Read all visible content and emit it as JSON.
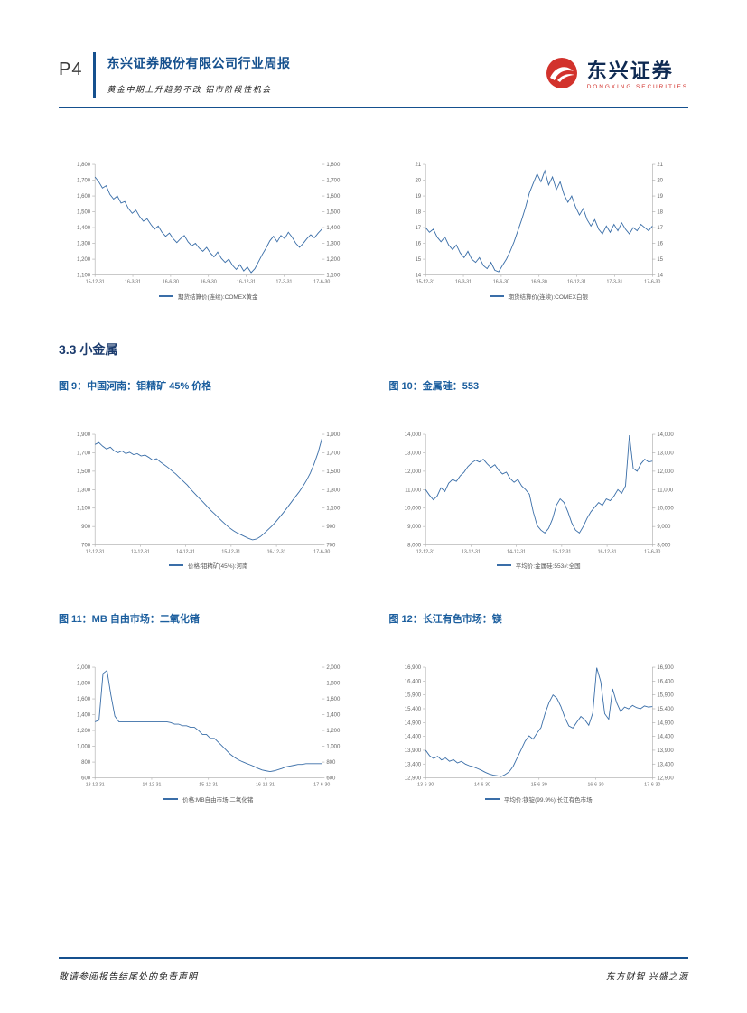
{
  "header": {
    "page_number": "P4",
    "title": "东兴证券股份有限公司行业周报",
    "subtitle": "黄金中期上升趋势不改 铝市阶段性机会",
    "brand_name": "东兴证券",
    "brand_sub": "DONGXING SECURITIES"
  },
  "section_heading": "3.3 小金属",
  "footer": {
    "left": "敬请参阅报告结尾处的免责声明",
    "right": "东方财智 兴盛之源"
  },
  "colors": {
    "accent_blue": "#15508e",
    "caption_blue": "#1b5e9e",
    "chart_line": "#3a6ea8",
    "logo_red": "#d2322c",
    "axis_gray": "#a9a9a9",
    "tick_text_gray": "#666666"
  },
  "chart_data": [
    {
      "type": "line",
      "legend": "期货结算价(连续):COMEX黄金",
      "ylim": [
        1100,
        1800
      ],
      "yticks": [
        1100,
        1200,
        1300,
        1400,
        1500,
        1600,
        1700,
        1800
      ],
      "x_ticks": [
        "15-12-31",
        "16-3-31",
        "16-6-30",
        "16-9-30",
        "16-12-31",
        "17-3-31",
        "17-6-30"
      ],
      "values": [
        1720,
        1690,
        1650,
        1665,
        1610,
        1580,
        1600,
        1555,
        1565,
        1520,
        1490,
        1510,
        1470,
        1440,
        1455,
        1420,
        1390,
        1410,
        1370,
        1345,
        1365,
        1330,
        1305,
        1330,
        1350,
        1310,
        1285,
        1300,
        1270,
        1250,
        1275,
        1240,
        1215,
        1245,
        1205,
        1180,
        1200,
        1160,
        1135,
        1165,
        1125,
        1150,
        1115,
        1140,
        1185,
        1230,
        1270,
        1315,
        1345,
        1310,
        1350,
        1330,
        1370,
        1340,
        1300,
        1275,
        1300,
        1330,
        1355,
        1335,
        1365,
        1390
      ]
    },
    {
      "type": "line",
      "legend": "期货结算价(连续):COMEX白银",
      "ylim": [
        14,
        21
      ],
      "yticks": [
        14,
        15,
        16,
        17,
        18,
        19,
        20,
        21
      ],
      "x_ticks": [
        "15-12-31",
        "16-3-31",
        "16-6-30",
        "16-9-30",
        "16-12-31",
        "17-3-31",
        "17-6-30"
      ],
      "values": [
        17.0,
        16.7,
        16.9,
        16.4,
        16.1,
        16.4,
        15.9,
        15.6,
        15.9,
        15.4,
        15.1,
        15.5,
        15.0,
        14.8,
        15.1,
        14.6,
        14.4,
        14.8,
        14.3,
        14.2,
        14.6,
        15.0,
        15.5,
        16.1,
        16.8,
        17.5,
        18.3,
        19.2,
        19.8,
        20.4,
        19.9,
        20.6,
        19.7,
        20.2,
        19.4,
        19.9,
        19.1,
        18.6,
        19.0,
        18.3,
        17.8,
        18.2,
        17.5,
        17.1,
        17.5,
        16.9,
        16.6,
        17.1,
        16.7,
        17.2,
        16.8,
        17.3,
        16.9,
        16.6,
        17.0,
        16.8,
        17.2,
        17.0,
        16.8,
        17.1
      ]
    },
    {
      "type": "line",
      "caption": "图 9：中国河南：钼精矿 45% 价格",
      "legend": "价格:钼精矿(45%):河南",
      "ylim": [
        700,
        1900
      ],
      "yticks": [
        700,
        900,
        1100,
        1300,
        1500,
        1700,
        1900
      ],
      "x_ticks": [
        "12-12-31",
        "13-12-31",
        "14-12-31",
        "15-12-31",
        "16-12-31",
        "17-6-30"
      ],
      "values": [
        1790,
        1810,
        1770,
        1740,
        1760,
        1720,
        1700,
        1720,
        1690,
        1705,
        1680,
        1690,
        1665,
        1675,
        1650,
        1620,
        1635,
        1600,
        1570,
        1540,
        1505,
        1470,
        1430,
        1390,
        1350,
        1300,
        1255,
        1210,
        1170,
        1125,
        1080,
        1040,
        1000,
        960,
        920,
        885,
        855,
        830,
        810,
        790,
        770,
        755,
        765,
        790,
        825,
        865,
        905,
        950,
        1000,
        1050,
        1105,
        1160,
        1215,
        1270,
        1330,
        1400,
        1480,
        1580,
        1700,
        1850
      ]
    },
    {
      "type": "line",
      "caption": "图 10：金属硅：553",
      "legend": "平均价:金属硅:553#:全国",
      "ylim": [
        8000,
        14000
      ],
      "yticks": [
        8000,
        9000,
        10000,
        11000,
        12000,
        13000,
        14000
      ],
      "x_ticks": [
        "12-12-31",
        "13-12-31",
        "14-12-31",
        "15-12-31",
        "16-12-31",
        "17-6-30"
      ],
      "values": [
        11000,
        10700,
        10450,
        10650,
        11100,
        10900,
        11350,
        11550,
        11450,
        11750,
        11950,
        12250,
        12450,
        12600,
        12500,
        12650,
        12400,
        12200,
        12350,
        12050,
        11850,
        11950,
        11600,
        11400,
        11550,
        11200,
        11000,
        10750,
        9800,
        9050,
        8800,
        8650,
        8900,
        9400,
        10150,
        10500,
        10300,
        9800,
        9200,
        8800,
        8650,
        9000,
        9450,
        9800,
        10050,
        10300,
        10150,
        10500,
        10400,
        10650,
        11000,
        10800,
        11200,
        13950,
        12150,
        12000,
        12400,
        12650,
        12500,
        12550
      ]
    },
    {
      "type": "line",
      "caption": "图 11：MB 自由市场：二氧化锗",
      "legend": "价格:MB自由市场:二氧化锗",
      "ylim": [
        600,
        2000
      ],
      "yticks": [
        600,
        800,
        1000,
        1200,
        1400,
        1600,
        1800,
        2000
      ],
      "x_ticks": [
        "13-12-31",
        "14-12-31",
        "15-12-31",
        "16-12-31",
        "17-6-30"
      ],
      "values": [
        1310,
        1330,
        1920,
        1960,
        1650,
        1380,
        1310,
        1310,
        1310,
        1310,
        1310,
        1310,
        1310,
        1310,
        1310,
        1310,
        1310,
        1310,
        1310,
        1300,
        1280,
        1280,
        1260,
        1260,
        1240,
        1240,
        1200,
        1150,
        1150,
        1100,
        1100,
        1050,
        1000,
        950,
        900,
        860,
        830,
        805,
        785,
        765,
        745,
        720,
        700,
        690,
        680,
        690,
        705,
        720,
        740,
        750,
        760,
        770,
        770,
        780,
        780,
        780,
        780,
        780
      ]
    },
    {
      "type": "line",
      "caption": "图 12：长江有色市场：镁",
      "legend": "平均价:镁锭(99.9%):长江有色市场",
      "ylim": [
        12900,
        16900
      ],
      "yticks": [
        12900,
        13400,
        13900,
        14400,
        14900,
        15400,
        15900,
        16400,
        16900
      ],
      "x_ticks": [
        "13-6-30",
        "14-6-30",
        "15-6-30",
        "16-6-30",
        "17-6-30"
      ],
      "values": [
        13900,
        13700,
        13600,
        13680,
        13550,
        13620,
        13500,
        13560,
        13440,
        13500,
        13400,
        13340,
        13300,
        13240,
        13180,
        13100,
        13040,
        13000,
        12980,
        12950,
        13020,
        13120,
        13320,
        13620,
        13920,
        14220,
        14420,
        14300,
        14520,
        14720,
        15220,
        15620,
        15900,
        15780,
        15480,
        15080,
        14780,
        14700,
        14920,
        15120,
        15000,
        14800,
        15240,
        16880,
        16380,
        15220,
        15020,
        16120,
        15620,
        15300,
        15460,
        15400,
        15520,
        15440,
        15400,
        15500,
        15460,
        15480
      ]
    }
  ]
}
